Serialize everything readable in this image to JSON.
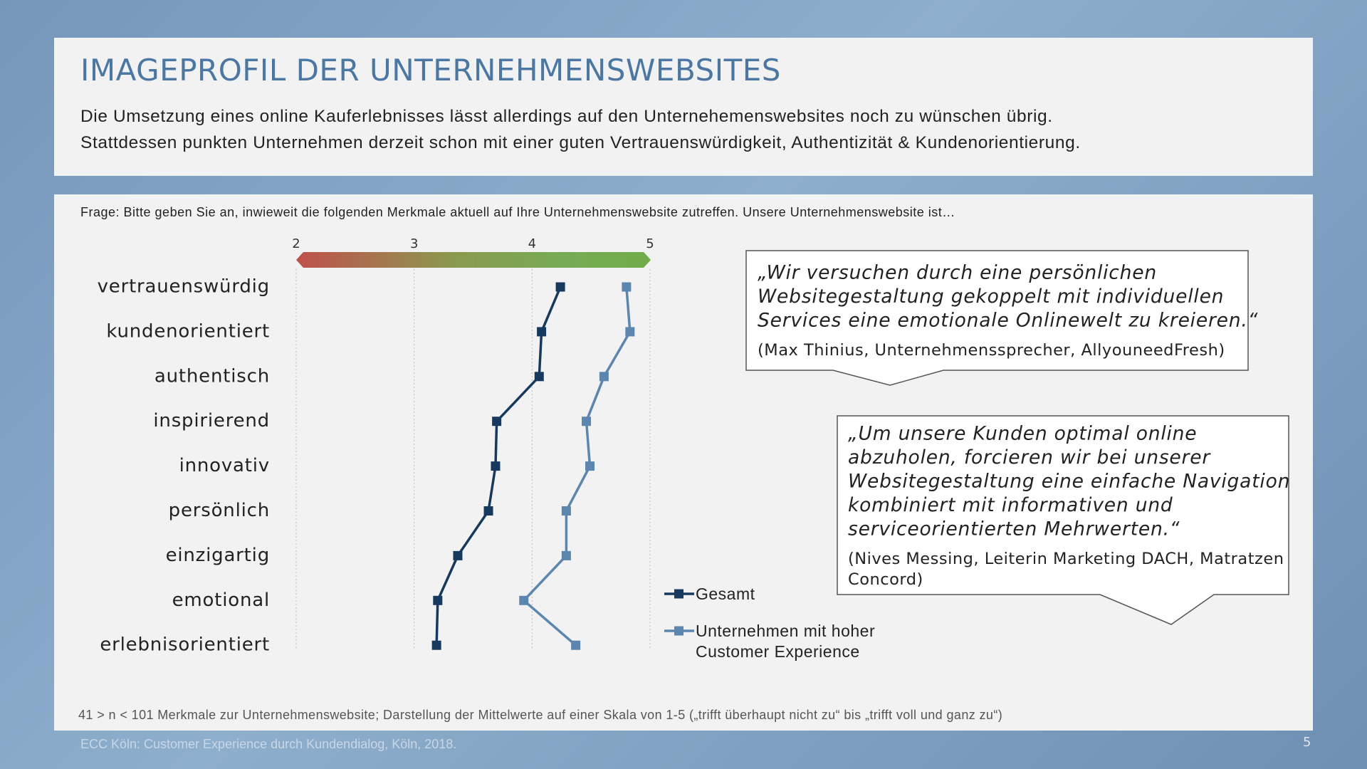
{
  "header": {
    "title": "IMAGEPROFIL DER UNTERNEHMENSWEBSITES",
    "subtitle": [
      "Die Umsetzung eines online Kauferlebnisses lässt allerdings auf den Unternehemenswebsites noch zu wünschen übrig.",
      "Stattdessen punkten Unternehmen derzeit schon mit einer guten Vertrauenswürdigkeit, Authentizität & Kundenorientierung."
    ]
  },
  "question": "Frage: Bitte geben Sie an, inwieweit die folgenden Merkmale aktuell auf Ihre Unternehmenswebsite zutreffen. Unsere Unternehmenswebsite ist…",
  "chart_data": {
    "type": "line",
    "categories": [
      "vertrauenswürdig",
      "kundenorientiert",
      "authentisch",
      "inspirierend",
      "innovativ",
      "persönlich",
      "einzigartig",
      "emotional",
      "erlebnisorientiert"
    ],
    "series": [
      {
        "name": "Gesamt",
        "color": "#163a5f",
        "values": [
          4.24,
          4.08,
          4.06,
          3.7,
          3.69,
          3.63,
          3.37,
          3.2,
          3.19
        ]
      },
      {
        "name": "Unternehmen mit hoher Customer Experience",
        "color": "#5b86b0",
        "values": [
          4.8,
          4.83,
          4.61,
          4.46,
          4.49,
          4.29,
          4.29,
          3.93,
          4.37
        ]
      }
    ],
    "xlim": [
      2,
      5
    ],
    "xticks": [
      2,
      3,
      4,
      5
    ],
    "grid": true
  },
  "quotes": [
    {
      "lines": [
        "„Wir versuchen durch eine persönlichen",
        "Websitegestaltung gekoppelt mit individuellen",
        "Services eine emotionale Onlinewelt zu kreieren.“"
      ],
      "source": [
        "(Max Thinius, Unternehmenssprecher, AllyouneedFresh)"
      ]
    },
    {
      "lines": [
        "„Um unsere Kunden optimal online",
        "abzuholen, forcieren wir bei unserer",
        "Websitegestaltung eine einfache Navigation",
        "kombiniert mit informativen und",
        "serviceorientierten Mehrwerten.“"
      ],
      "source": [
        "(Nives Messing, Leiterin Marketing DACH, Matratzen",
        "Concord)"
      ]
    }
  ],
  "footnote": "41 > n < 101 Merkmale zur Unternehmenswebsite; Darstellung der Mittelwerte auf einer Skala von 1-5 („trifft überhaupt nicht zu“ bis „trifft voll und ganz zu“)",
  "source": "ECC Köln: Customer Experience durch Kundendialog, Köln, 2018.",
  "page_number": "5"
}
